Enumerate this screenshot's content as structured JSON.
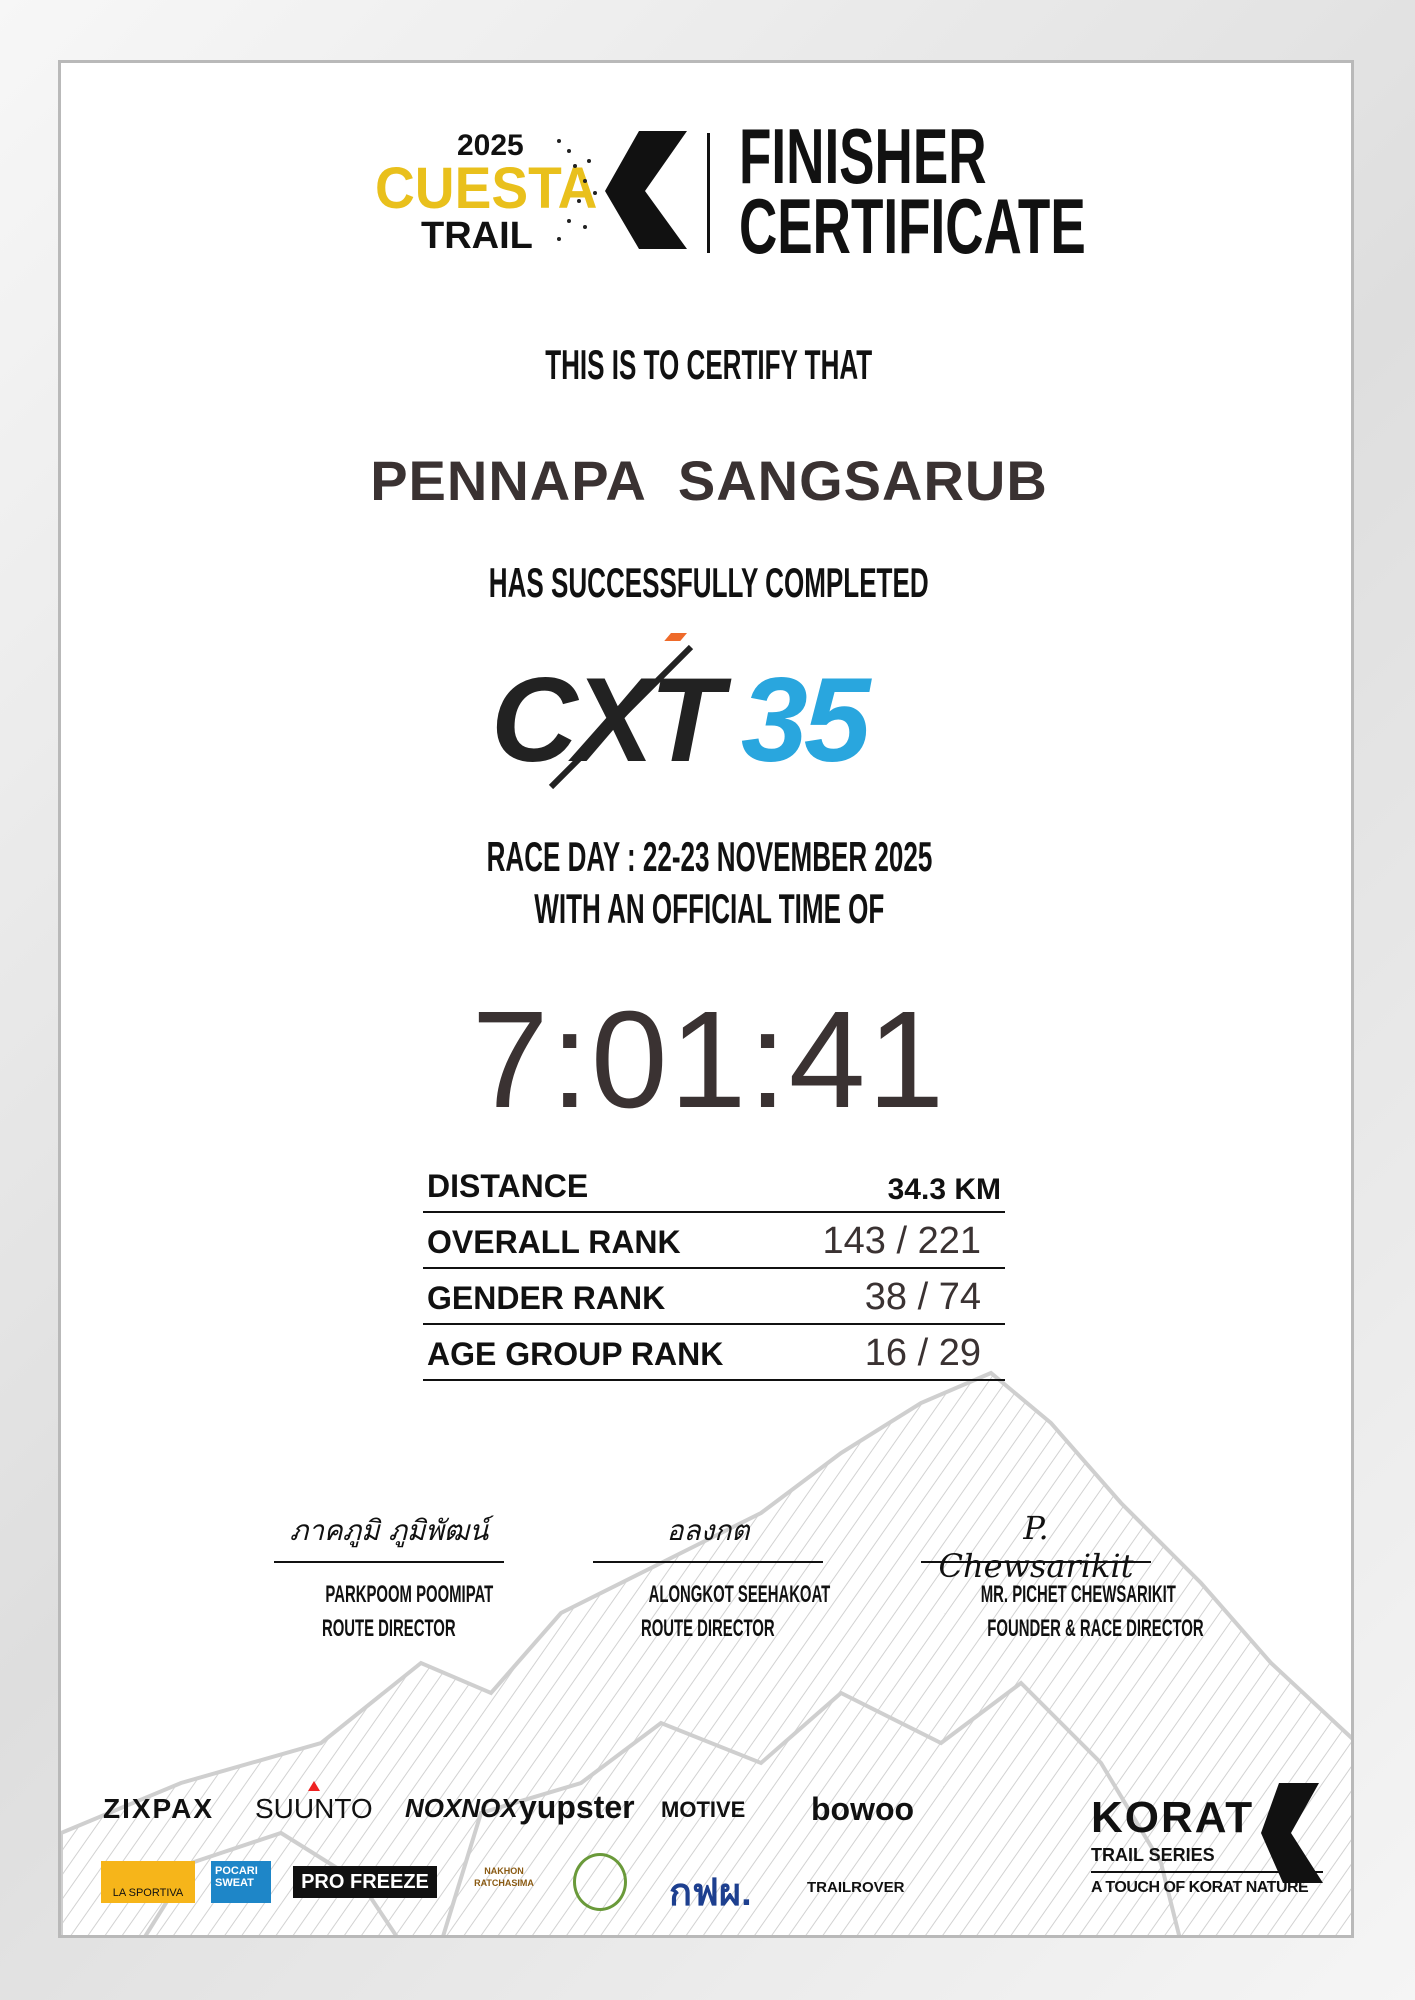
{
  "header": {
    "logo_year": "2025",
    "logo_word1": "CUESTA",
    "logo_word2": "TRAIL",
    "title_line1": "FINISHER",
    "title_line2": "CERTIFICATE"
  },
  "certify_text": "THIS IS TO CERTIFY THAT",
  "finisher_name": "PENNAPA  SANGSARUB",
  "completed_text": "HAS SUCCESSFULLY COMPLETED",
  "race_logo": {
    "letters": "CXT",
    "distance": "35",
    "accent_color": "#29a6de"
  },
  "race_day": "RACE DAY : 22-23 NOVEMBER 2025",
  "official_time_label": "WITH AN OFFICIAL TIME OF",
  "official_time": "7:01:41",
  "results": [
    {
      "label": "DISTANCE",
      "value": "34.3 KM"
    },
    {
      "label": "OVERALL RANK",
      "value": "143 / 221"
    },
    {
      "label": "GENDER RANK",
      "value": "38 / 74"
    },
    {
      "label": "AGE GROUP RANK",
      "value": "16 / 29"
    }
  ],
  "signatories": [
    {
      "signature": "ภาคภูมิ ภูมิพัฒน์",
      "name": "PARKPOOM POOMIPAT",
      "title": "ROUTE DIRECTOR"
    },
    {
      "signature": "อลงกต",
      "name": "ALONGKOT SEEHAKOAT",
      "title": "ROUTE DIRECTOR"
    },
    {
      "signature": "P. Chewsarikit",
      "name": "MR. PICHET CHEWSARIKIT",
      "title": "FOUNDER & RACE DIRECTOR"
    }
  ],
  "sponsors_row1": [
    "ZIXPAX",
    "SUUNTO",
    "NOXNOX",
    "yupster",
    "MOTIVE",
    "bowoo"
  ],
  "sponsors_row2": [
    "LA SPORTIVA",
    "POCARI SWEAT",
    "PRO FREEZE",
    "NAKHON RATCHASIMA",
    "seal",
    "กฟผ.",
    "TRAILROVER"
  ],
  "series_logo": {
    "name": "KORAT",
    "sub": "TRAIL  SERIES",
    "tagline": "A TOUCH OF KORAT NATURE"
  },
  "colors": {
    "cuesta_yellow": "#e9c01c",
    "text_dark": "#3a3232",
    "cxt_blue": "#29a6de"
  }
}
